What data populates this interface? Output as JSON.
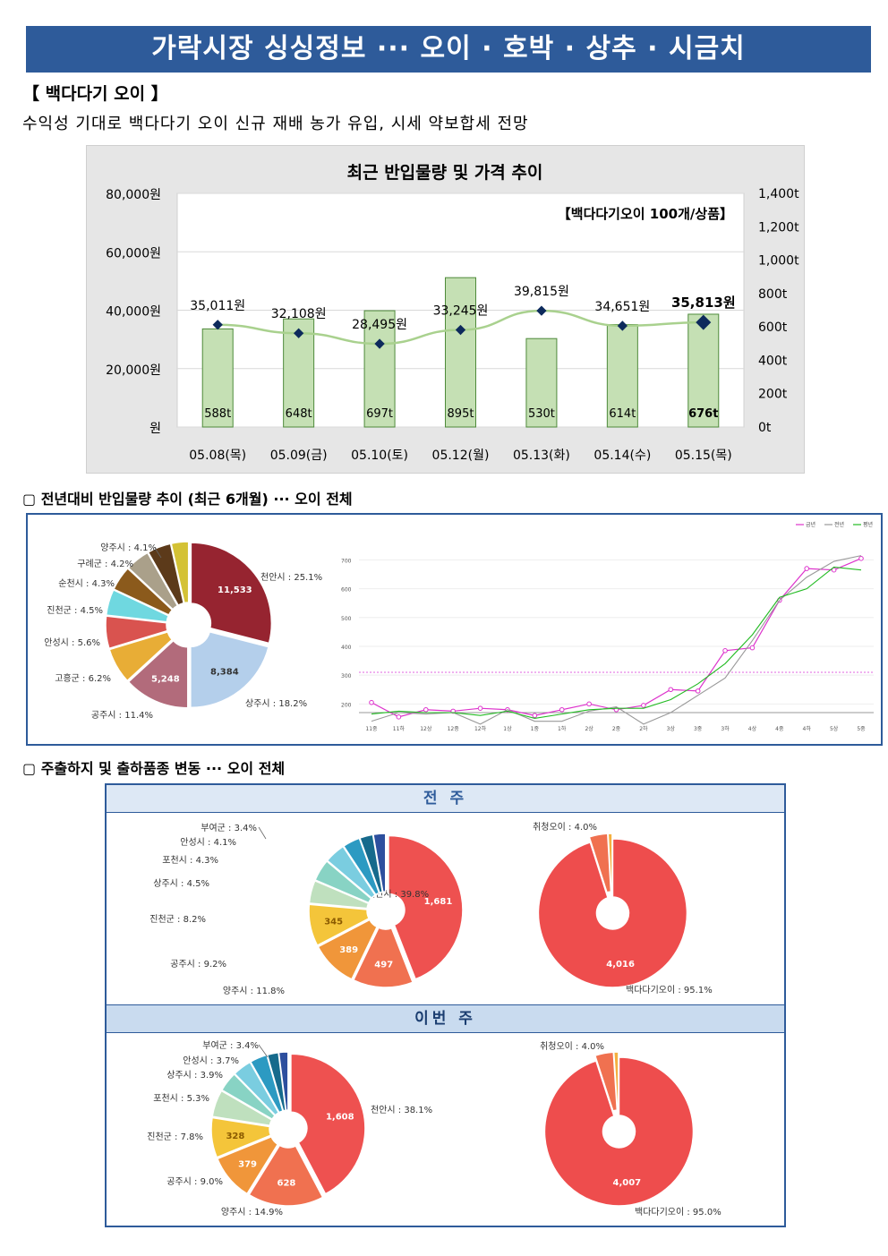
{
  "title": "가락시장 싱싱정보 ··· 오이 · 호박 · 상추 · 시금치",
  "section1": {
    "heading": "【 백다다기 오이 】",
    "summary": "수익성 기대로 백다다기 오이 신규 재배 농가 유입, 시세 약보합세 전망"
  },
  "chart_data": [
    {
      "type": "bar",
      "title": "최근 반입물량 및 가격 추이",
      "annotation": "【백다다기오이 100개/상품】",
      "categories": [
        "05.08(목)",
        "05.09(금)",
        "05.10(토)",
        "05.12(월)",
        "05.13(화)",
        "05.14(수)",
        "05.15(목)"
      ],
      "y_left_ticks": [
        "80,000원",
        "60,000원",
        "40,000원",
        "20,000원",
        "원"
      ],
      "y_right_ticks": [
        "1,400t",
        "1,200t",
        "1,000t",
        "800t",
        "600t",
        "400t",
        "200t",
        "0t"
      ],
      "ylim_left": [
        0,
        80000
      ],
      "ylim_right": [
        0,
        1400
      ],
      "series": [
        {
          "name": "반입물량",
          "values": [
            588,
            648,
            697,
            895,
            530,
            614,
            676
          ],
          "labels": [
            "588t",
            "648t",
            "697t",
            "895t",
            "530t",
            "614t",
            "676t"
          ],
          "axis": "right",
          "color": "#c5e0b4"
        },
        {
          "name": "가격",
          "values": [
            35011,
            32108,
            28495,
            33245,
            39815,
            34651,
            35813
          ],
          "labels": [
            "35,011원",
            "32,108원",
            "28,495원",
            "33,245원",
            "39,815원",
            "34,651원",
            "35,813원"
          ],
          "axis": "left",
          "color": "#0d2a5c"
        }
      ]
    },
    {
      "type": "pie",
      "title": "",
      "slices": [
        {
          "label": "천안시 : 25.1%",
          "value": 25.1,
          "inner": "11,533",
          "color": "#962430"
        },
        {
          "label": "상주시 : 18.2%",
          "value": 18.2,
          "inner": "8,384",
          "color": "#b4cfeb"
        },
        {
          "label": "공주시 : 11.4%",
          "value": 11.4,
          "inner": "5,248",
          "color": "#b26b7b"
        },
        {
          "label": "고흥군 : 6.2%",
          "value": 6.2,
          "inner": "",
          "color": "#e8ad36"
        },
        {
          "label": "안성시 : 5.6%",
          "value": 5.6,
          "inner": "",
          "color": "#d9534f"
        },
        {
          "label": "진천군 : 4.5%",
          "value": 4.5,
          "inner": "",
          "color": "#6fd8e0"
        },
        {
          "label": "순천시 : 4.3%",
          "value": 4.3,
          "inner": "",
          "color": "#8b5a1c"
        },
        {
          "label": "구례군 : 4.2%",
          "value": 4.2,
          "inner": "",
          "color": "#aaa08a"
        },
        {
          "label": "양주시 : 4.1%",
          "value": 4.1,
          "inner": "",
          "color": "#5c3a1a"
        },
        {
          "label": "",
          "value": 3.0,
          "inner": "",
          "color": "#d4c235"
        }
      ]
    },
    {
      "type": "line",
      "title": "",
      "legend": [
        "금년",
        "전년",
        "평년"
      ],
      "x": [
        "11중",
        "11하",
        "12상",
        "12중",
        "12하",
        "1상",
        "1중",
        "1하",
        "2상",
        "2중",
        "2하",
        "3상",
        "3중",
        "3하",
        "4상",
        "4중",
        "4하",
        "5상",
        "5중"
      ],
      "y_ticks": [
        "700",
        "600",
        "500",
        "400",
        "300",
        "200"
      ],
      "ylim": [
        170,
        720
      ],
      "series": [
        {
          "name": "금년",
          "color": "#dd33cc",
          "values": [
            205,
            155,
            180,
            175,
            185,
            180,
            160,
            180,
            200,
            180,
            195,
            250,
            245,
            385,
            395,
            560,
            670,
            665,
            705
          ]
        },
        {
          "name": "전년",
          "color": "#999999",
          "values": [
            140,
            170,
            165,
            170,
            130,
            180,
            140,
            140,
            175,
            190,
            130,
            170,
            230,
            290,
            420,
            560,
            640,
            695,
            715
          ]
        },
        {
          "name": "평년",
          "color": "#22bb22",
          "values": [
            165,
            175,
            170,
            170,
            160,
            175,
            150,
            165,
            180,
            185,
            185,
            215,
            270,
            340,
            440,
            570,
            600,
            675,
            665
          ]
        }
      ],
      "reference_line": 310
    },
    {
      "type": "pie",
      "title": "전 주",
      "slices": [
        {
          "label": "천안시 : 39.8%",
          "value": 39.8,
          "inner": "1,681",
          "color": "#ee5150"
        },
        {
          "label": "양주시 : 11.8%",
          "value": 11.8,
          "inner": "497",
          "color": "#f07150"
        },
        {
          "label": "공주시 : 9.2%",
          "value": 9.2,
          "inner": "389",
          "color": "#f0963a"
        },
        {
          "label": "진천군 : 8.2%",
          "value": 8.2,
          "inner": "345",
          "color": "#f4c53a"
        },
        {
          "label": "상주시 : 4.5%",
          "value": 4.5,
          "inner": "",
          "color": "#bfe0be"
        },
        {
          "label": "포천시 : 4.3%",
          "value": 4.3,
          "inner": "",
          "color": "#88d3c4"
        },
        {
          "label": "안성시 : 4.1%",
          "value": 4.1,
          "inner": "",
          "color": "#7acde0"
        },
        {
          "label": "부여군 : 3.4%",
          "value": 3.4,
          "inner": "",
          "color": "#2c9ac2"
        },
        {
          "label": "",
          "value": 2.6,
          "inner": "",
          "color": "#166a8c"
        },
        {
          "label": "",
          "value": 2.4,
          "inner": "",
          "color": "#2d4f9e"
        }
      ]
    },
    {
      "type": "pie",
      "title": "전 주",
      "slices": [
        {
          "label": "백다다기오이 : 95.1%",
          "value": 95.1,
          "inner": "4,016",
          "color": "#ee4d4d"
        },
        {
          "label": "취청오이 : 4.0%",
          "value": 4.0,
          "inner": "",
          "color": "#f07150"
        },
        {
          "label": "",
          "value": 0.9,
          "inner": "",
          "color": "#f4b040"
        }
      ]
    },
    {
      "type": "pie",
      "title": "이번 주",
      "slices": [
        {
          "label": "천안시 : 38.1%",
          "value": 38.1,
          "inner": "1,608",
          "color": "#ee5150"
        },
        {
          "label": "양주시 : 14.9%",
          "value": 14.9,
          "inner": "628",
          "color": "#f07150"
        },
        {
          "label": "공주시 : 9.0%",
          "value": 9.0,
          "inner": "379",
          "color": "#f0963a"
        },
        {
          "label": "진천군 : 7.8%",
          "value": 7.8,
          "inner": "328",
          "color": "#f4c53a"
        },
        {
          "label": "포천시 : 5.3%",
          "value": 5.3,
          "inner": "",
          "color": "#bfe0be"
        },
        {
          "label": "상주시 : 3.9%",
          "value": 3.9,
          "inner": "",
          "color": "#88d3c4"
        },
        {
          "label": "안성시 : 3.7%",
          "value": 3.7,
          "inner": "",
          "color": "#7acde0"
        },
        {
          "label": "부여군 : 3.4%",
          "value": 3.4,
          "inner": "",
          "color": "#2c9ac2"
        },
        {
          "label": "",
          "value": 2.2,
          "inner": "",
          "color": "#166a8c"
        },
        {
          "label": "",
          "value": 1.8,
          "inner": "",
          "color": "#2d4f9e"
        }
      ]
    },
    {
      "type": "pie",
      "title": "이번 주",
      "slices": [
        {
          "label": "백다다기오이 : 95.0%",
          "value": 95.0,
          "inner": "4,007",
          "color": "#ee4d4d"
        },
        {
          "label": "취청오이 : 4.0%",
          "value": 4.0,
          "inner": "",
          "color": "#f07150"
        },
        {
          "label": "",
          "value": 1.0,
          "inner": "",
          "color": "#f4b040"
        }
      ]
    }
  ],
  "section2": {
    "heading": "▢ 전년대비 반입물량 추이 (최근 6개월) ··· 오이 전체"
  },
  "section3": {
    "heading": "▢ 주출하지 및 출하품종 변동 ··· 오이 전체",
    "prev_week": "전 주",
    "this_week": "이번 주"
  }
}
